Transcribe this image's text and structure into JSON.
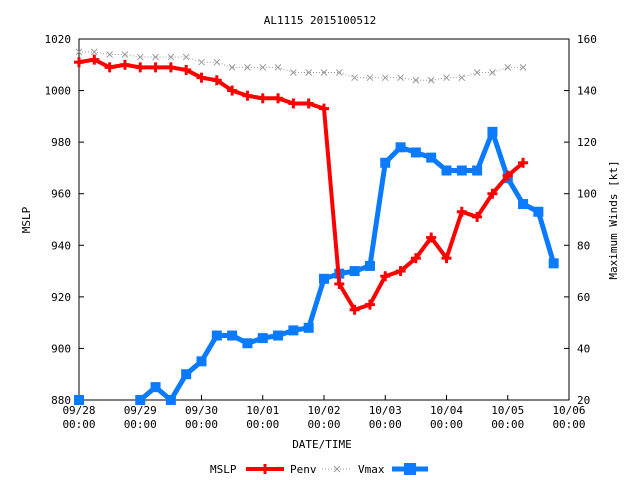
{
  "chart_data": {
    "type": "line",
    "title": "AL1115 2015100512",
    "xlabel": "DATE/TIME",
    "ylabel_left": "MSLP",
    "ylabel_right": "Maximum Winds [kt]",
    "x_range": [
      "09/28 00:00",
      "10/06 00:00"
    ],
    "x_ticks": [
      {
        "t": 0,
        "label_date": "09/28",
        "label_time": "00:00"
      },
      {
        "t": 24,
        "label_date": "09/29",
        "label_time": "00:00"
      },
      {
        "t": 48,
        "label_date": "09/30",
        "label_time": "00:00"
      },
      {
        "t": 72,
        "label_date": "10/01",
        "label_time": "00:00"
      },
      {
        "t": 96,
        "label_date": "10/02",
        "label_time": "00:00"
      },
      {
        "t": 120,
        "label_date": "10/03",
        "label_time": "00:00"
      },
      {
        "t": 144,
        "label_date": "10/04",
        "label_time": "00:00"
      },
      {
        "t": 168,
        "label_date": "10/05",
        "label_time": "00:00"
      },
      {
        "t": 192,
        "label_date": "10/06",
        "label_time": "00:00"
      }
    ],
    "ylim_left": [
      880,
      1020
    ],
    "yticks_left": [
      880,
      900,
      920,
      940,
      960,
      980,
      1000,
      1020
    ],
    "ylim_right": [
      20,
      160
    ],
    "yticks_right": [
      20,
      40,
      60,
      80,
      100,
      120,
      140,
      160
    ],
    "legend": {
      "placement": "bottom",
      "label": "MSLP",
      "entries": [
        "Penv",
        "Vmax"
      ]
    },
    "series": [
      {
        "name": "MSLP",
        "axis": "left",
        "color": "#ff0000",
        "style": "solid-plus",
        "x": [
          0,
          6,
          12,
          18,
          24,
          30,
          36,
          42,
          48,
          54,
          60,
          66,
          72,
          78,
          84,
          90,
          96,
          102,
          108,
          114,
          120,
          126,
          132,
          138,
          144,
          150,
          156,
          162,
          168,
          174,
          180,
          186
        ],
        "y": [
          1011,
          1012,
          1009,
          1010,
          1009,
          1009,
          1009,
          1008,
          1005,
          1004,
          1000,
          998,
          997,
          997,
          995,
          995,
          993,
          925,
          915,
          917,
          928,
          930,
          935,
          943,
          935,
          953,
          951,
          960,
          967,
          972,
          null,
          null
        ]
      },
      {
        "name": "Penv",
        "axis": "left",
        "color": "#999999",
        "style": "dotted-x",
        "x": [
          0,
          6,
          12,
          18,
          24,
          30,
          36,
          42,
          48,
          54,
          60,
          66,
          72,
          78,
          84,
          90,
          96,
          102,
          108,
          114,
          120,
          126,
          132,
          138,
          144,
          150,
          156,
          162,
          168,
          174,
          180,
          186
        ],
        "y": [
          1015,
          1015,
          1014,
          1014,
          1013,
          1013,
          1013,
          1013,
          1011,
          1011,
          1009,
          1009,
          1009,
          1009,
          1007,
          1007,
          1007,
          1007,
          1005,
          1005,
          1005,
          1005,
          1004,
          1004,
          1005,
          1005,
          1007,
          1007,
          1009,
          1009,
          null,
          null
        ]
      },
      {
        "name": "Vmax",
        "axis": "right",
        "color": "#0a7aff",
        "style": "solid-square",
        "x": [
          0,
          6,
          12,
          18,
          24,
          30,
          36,
          42,
          48,
          54,
          60,
          66,
          72,
          78,
          84,
          90,
          96,
          102,
          108,
          114,
          120,
          126,
          132,
          138,
          144,
          150,
          156,
          162,
          168,
          174,
          180,
          186
        ],
        "y": [
          20,
          null,
          null,
          null,
          20,
          25,
          20,
          30,
          35,
          45,
          45,
          42,
          44,
          45,
          47,
          48,
          67,
          69,
          70,
          72,
          112,
          118,
          116,
          114,
          109,
          109,
          109,
          124,
          106,
          96,
          93,
          73
        ]
      }
    ]
  }
}
